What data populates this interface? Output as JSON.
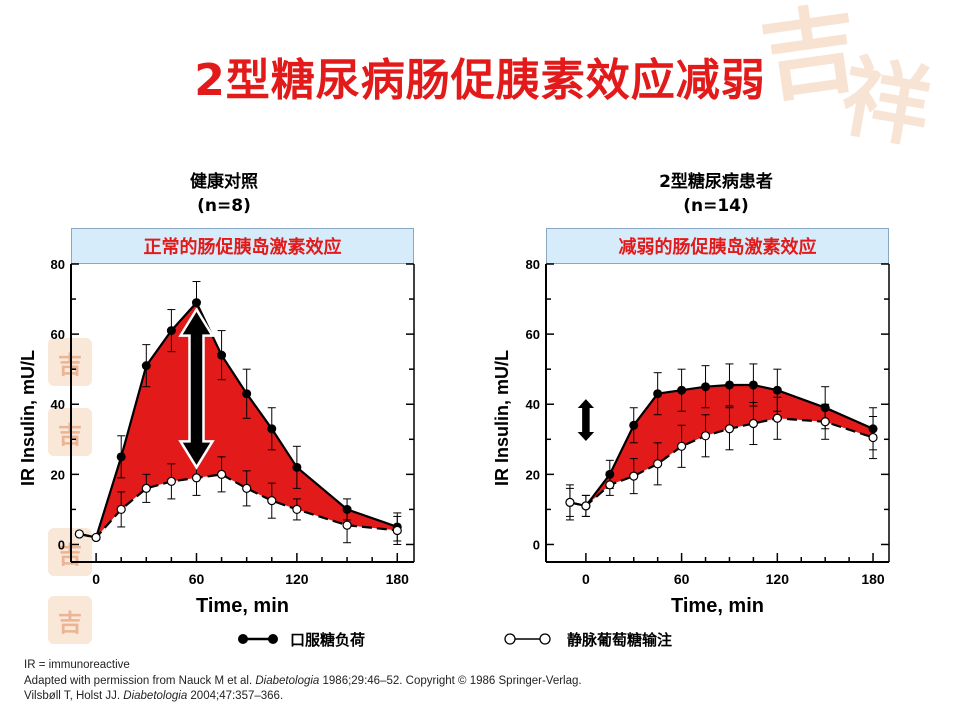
{
  "slide": {
    "title": "2型糖尿病肠促胰素效应减弱"
  },
  "watermark": {
    "glyph_a": "吉",
    "glyph_b": "祥",
    "stamp_glyph": "吉"
  },
  "panels": [
    {
      "group_title": "健康对照",
      "group_n": "(n=8)",
      "banner": "正常的肠促胰岛激素效应"
    },
    {
      "group_title": "2型糖尿病患者",
      "group_n": "(n=14)",
      "banner": "减弱的肠促胰岛激素效应"
    }
  ],
  "legend": {
    "oral": "口服糖负荷",
    "iv": "静脉葡萄糖输注"
  },
  "colors": {
    "title": "#e21a1a",
    "fill": "#e21a1a",
    "banner_bg": "#d6ecfa",
    "axis": "#000000"
  },
  "footnote": {
    "line1": "IR = immunoreactive",
    "line2_pre": "Adapted with permission from Nauck M et al. ",
    "line2_journal": "Diabetologia",
    "line2_post": " 1986;29:46–52. Copyright © 1986 Springer-Verlag.",
    "line3_pre": "Vilsbøll T, Holst JJ. ",
    "line3_journal": "Diabetologia",
    "line3_post": " 2004;47:357–366."
  },
  "chart_data": [
    {
      "type": "line",
      "xlabel": "Time, min",
      "ylabel": "IR Insulin, mU/L",
      "xlim": [
        -15,
        190
      ],
      "ylim": [
        -5,
        80
      ],
      "xticks": [
        0,
        60,
        120,
        180
      ],
      "yticks": [
        0,
        20,
        40,
        60,
        80
      ],
      "fill_between": true,
      "arrow": {
        "x": 60,
        "y_from": 22,
        "y_to": 67
      },
      "series": [
        {
          "marker": "filled",
          "x": [
            -10,
            0,
            15,
            30,
            45,
            60,
            75,
            90,
            105,
            120,
            150,
            180
          ],
          "y": [
            3,
            2,
            25,
            51,
            61,
            69,
            54,
            43,
            33,
            22,
            10,
            5
          ],
          "err": [
            0,
            0,
            6,
            6,
            6,
            6,
            7,
            7,
            6,
            6,
            3,
            4
          ]
        },
        {
          "marker": "open",
          "x": [
            -10,
            0,
            15,
            30,
            45,
            60,
            75,
            90,
            105,
            120,
            150,
            180
          ],
          "y": [
            3,
            2,
            10,
            16,
            18,
            19,
            20,
            16,
            12.5,
            10,
            5.5,
            4
          ],
          "err": [
            0,
            0,
            5,
            4,
            5,
            5,
            5,
            5,
            5,
            3,
            5,
            4
          ]
        }
      ]
    },
    {
      "type": "line",
      "xlabel": "Time, min",
      "ylabel": "IR Insulin, mU/L",
      "xlim": [
        -25,
        190
      ],
      "ylim": [
        -5,
        80
      ],
      "xticks": [
        0,
        60,
        120,
        180
      ],
      "yticks": [
        0,
        20,
        40,
        60,
        80
      ],
      "fill_between": true,
      "arrow": {
        "x": 0,
        "y_from": 29,
        "y_to": 42
      },
      "series": [
        {
          "marker": "filled",
          "x": [
            -10,
            0,
            15,
            30,
            45,
            60,
            75,
            90,
            105,
            120,
            150,
            180
          ],
          "y": [
            12,
            11,
            20,
            34,
            43,
            44,
            45,
            45.5,
            45.5,
            44,
            39,
            33
          ],
          "err": [
            5,
            3,
            4,
            5,
            6,
            6,
            6,
            6,
            6,
            6,
            6,
            6
          ]
        },
        {
          "marker": "open",
          "x": [
            -10,
            0,
            15,
            30,
            45,
            60,
            75,
            90,
            105,
            120,
            150,
            180
          ],
          "y": [
            12,
            11,
            17,
            19.5,
            23,
            28,
            31,
            33,
            34.5,
            36,
            35,
            30.5
          ],
          "err": [
            4,
            3,
            3,
            5,
            6,
            6,
            6,
            6,
            6,
            6,
            5,
            6
          ]
        }
      ]
    }
  ]
}
